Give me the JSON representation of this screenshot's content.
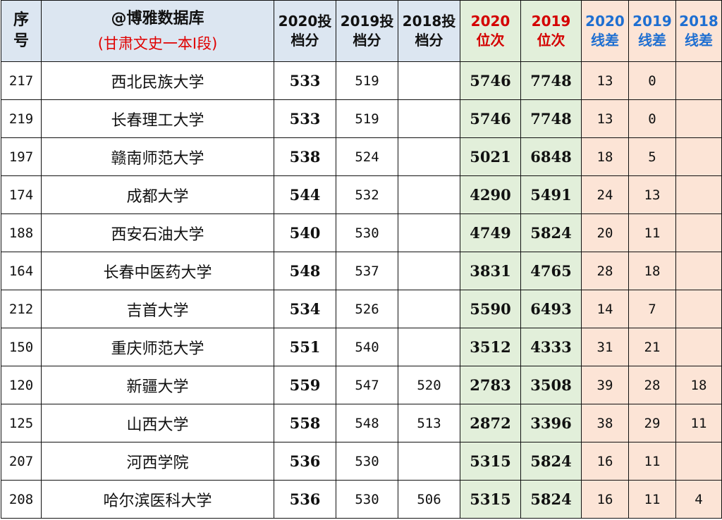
{
  "header": {
    "seq_label": "序号",
    "title_main": "@博雅数据库",
    "title_sub": "(甘肃文史一本I段)",
    "score2020": "2020投档分",
    "score2019": "2019投档分",
    "score2018": "2018投档分",
    "rank2020": "2020位次",
    "rank2019": "2019位次",
    "diff2020": "2020线差",
    "diff2019": "2019线差",
    "diff2018": "2018线差"
  },
  "colors": {
    "header_bg": "#dce6f1",
    "rank_bg": "#e2efda",
    "diff_bg": "#fce4d6",
    "rank_header_text": "#d40000",
    "diff_header_text": "#1f6fd1",
    "subtitle_text": "#e00000"
  },
  "rows": [
    {
      "seq": "217",
      "name": "西北民族大学",
      "s2020": "533",
      "s2019": "519",
      "s2018": "",
      "r2020": "5746",
      "r2019": "7748",
      "d2020": "13",
      "d2019": "0",
      "d2018": ""
    },
    {
      "seq": "219",
      "name": "长春理工大学",
      "s2020": "533",
      "s2019": "519",
      "s2018": "",
      "r2020": "5746",
      "r2019": "7748",
      "d2020": "13",
      "d2019": "0",
      "d2018": ""
    },
    {
      "seq": "197",
      "name": "赣南师范大学",
      "s2020": "538",
      "s2019": "524",
      "s2018": "",
      "r2020": "5021",
      "r2019": "6848",
      "d2020": "18",
      "d2019": "5",
      "d2018": ""
    },
    {
      "seq": "174",
      "name": "成都大学",
      "s2020": "544",
      "s2019": "532",
      "s2018": "",
      "r2020": "4290",
      "r2019": "5491",
      "d2020": "24",
      "d2019": "13",
      "d2018": ""
    },
    {
      "seq": "188",
      "name": "西安石油大学",
      "s2020": "540",
      "s2019": "530",
      "s2018": "",
      "r2020": "4749",
      "r2019": "5824",
      "d2020": "20",
      "d2019": "11",
      "d2018": ""
    },
    {
      "seq": "164",
      "name": "长春中医药大学",
      "s2020": "548",
      "s2019": "537",
      "s2018": "",
      "r2020": "3831",
      "r2019": "4765",
      "d2020": "28",
      "d2019": "18",
      "d2018": ""
    },
    {
      "seq": "212",
      "name": "吉首大学",
      "s2020": "534",
      "s2019": "526",
      "s2018": "",
      "r2020": "5590",
      "r2019": "6493",
      "d2020": "14",
      "d2019": "7",
      "d2018": ""
    },
    {
      "seq": "150",
      "name": "重庆师范大学",
      "s2020": "551",
      "s2019": "540",
      "s2018": "",
      "r2020": "3512",
      "r2019": "4333",
      "d2020": "31",
      "d2019": "21",
      "d2018": ""
    },
    {
      "seq": "120",
      "name": "新疆大学",
      "s2020": "559",
      "s2019": "547",
      "s2018": "520",
      "r2020": "2783",
      "r2019": "3508",
      "d2020": "39",
      "d2019": "28",
      "d2018": "18"
    },
    {
      "seq": "125",
      "name": "山西大学",
      "s2020": "558",
      "s2019": "548",
      "s2018": "513",
      "r2020": "2872",
      "r2019": "3396",
      "d2020": "38",
      "d2019": "29",
      "d2018": "11"
    },
    {
      "seq": "207",
      "name": "河西学院",
      "s2020": "536",
      "s2019": "530",
      "s2018": "",
      "r2020": "5315",
      "r2019": "5824",
      "d2020": "16",
      "d2019": "11",
      "d2018": ""
    },
    {
      "seq": "208",
      "name": "哈尔滨医科大学",
      "s2020": "536",
      "s2019": "530",
      "s2018": "506",
      "r2020": "5315",
      "r2019": "5824",
      "d2020": "16",
      "d2019": "11",
      "d2018": "4"
    }
  ]
}
